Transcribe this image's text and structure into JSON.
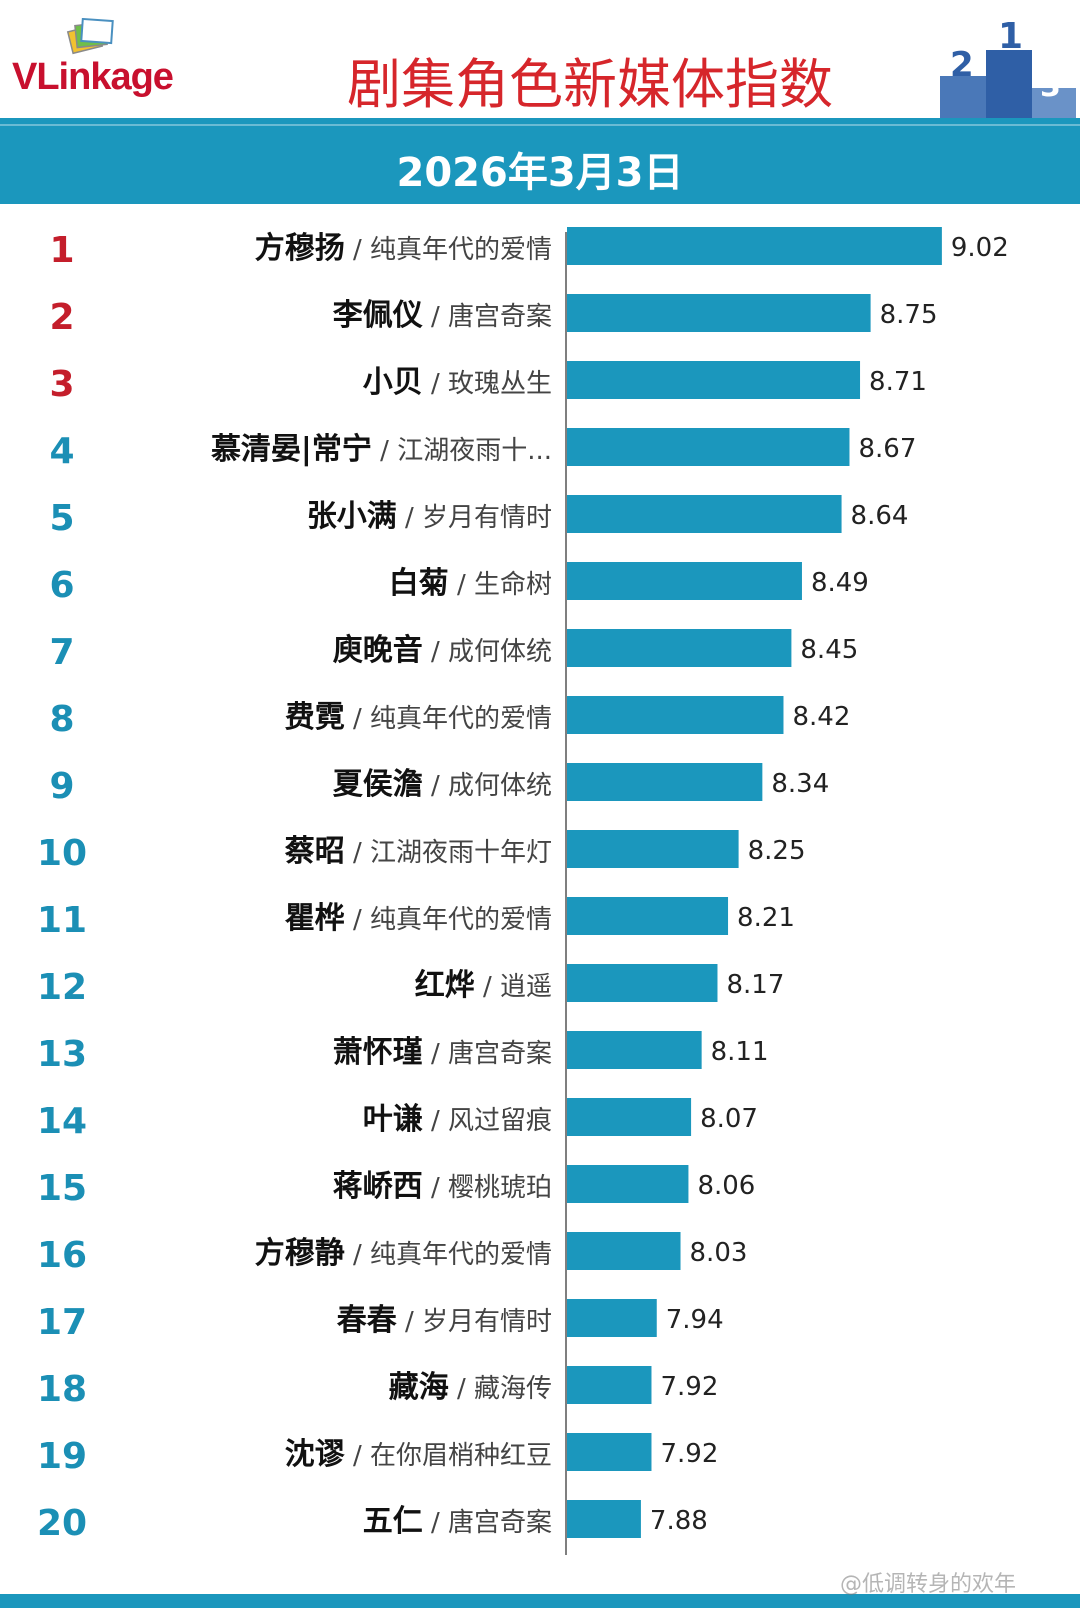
{
  "header": {
    "brand_name": "VLinkage",
    "title": "剧集角色新媒体指数",
    "date": "2026年3月3日",
    "accent_color": "#1b97bd",
    "title_color": "#d6262b"
  },
  "watermark": "@低调转身的欢年",
  "chart_data": {
    "type": "bar",
    "orientation": "horizontal",
    "title": "剧集角色新媒体指数",
    "subtitle": "2026年3月3日",
    "bar_color": "#1b97bd",
    "top_rank_color": "#c41e2b",
    "rank_color": "#1b8fb5",
    "xlim": [
      7.6,
      9.1
    ],
    "rows": [
      {
        "rank": "1",
        "character": "方穆扬",
        "drama": "纯真年代的爱情",
        "value": 9.02
      },
      {
        "rank": "2",
        "character": "李佩仪",
        "drama": "唐宫奇案",
        "value": 8.75
      },
      {
        "rank": "3",
        "character": "小贝",
        "drama": "玫瑰丛生",
        "value": 8.71
      },
      {
        "rank": "4",
        "character": "慕清晏|常宁",
        "drama": "江湖夜雨十...",
        "value": 8.67
      },
      {
        "rank": "5",
        "character": "张小满",
        "drama": "岁月有情时",
        "value": 8.64
      },
      {
        "rank": "6",
        "character": "白菊",
        "drama": "生命树",
        "value": 8.49
      },
      {
        "rank": "7",
        "character": "庾晚音",
        "drama": "成何体统",
        "value": 8.45
      },
      {
        "rank": "8",
        "character": "费霓",
        "drama": "纯真年代的爱情",
        "value": 8.42
      },
      {
        "rank": "9",
        "character": "夏侯澹",
        "drama": "成何体统",
        "value": 8.34
      },
      {
        "rank": "10",
        "character": "蔡昭",
        "drama": "江湖夜雨十年灯",
        "value": 8.25
      },
      {
        "rank": "11",
        "character": "瞿桦",
        "drama": "纯真年代的爱情",
        "value": 8.21
      },
      {
        "rank": "12",
        "character": "红烨",
        "drama": "逍遥",
        "value": 8.17
      },
      {
        "rank": "13",
        "character": "萧怀瑾",
        "drama": "唐宫奇案",
        "value": 8.11
      },
      {
        "rank": "14",
        "character": "叶谦",
        "drama": "风过留痕",
        "value": 8.07
      },
      {
        "rank": "15",
        "character": "蒋峤西",
        "drama": "樱桃琥珀",
        "value": 8.06
      },
      {
        "rank": "16",
        "character": "方穆静",
        "drama": "纯真年代的爱情",
        "value": 8.03
      },
      {
        "rank": "17",
        "character": "春春",
        "drama": "岁月有情时",
        "value": 7.94
      },
      {
        "rank": "18",
        "character": "藏海",
        "drama": "藏海传",
        "value": 7.92
      },
      {
        "rank": "19",
        "character": "沈谬",
        "drama": "在你眉梢种红豆",
        "value": 7.92
      },
      {
        "rank": "20",
        "character": "五仁",
        "drama": "唐宫奇案",
        "value": 7.88
      }
    ]
  }
}
